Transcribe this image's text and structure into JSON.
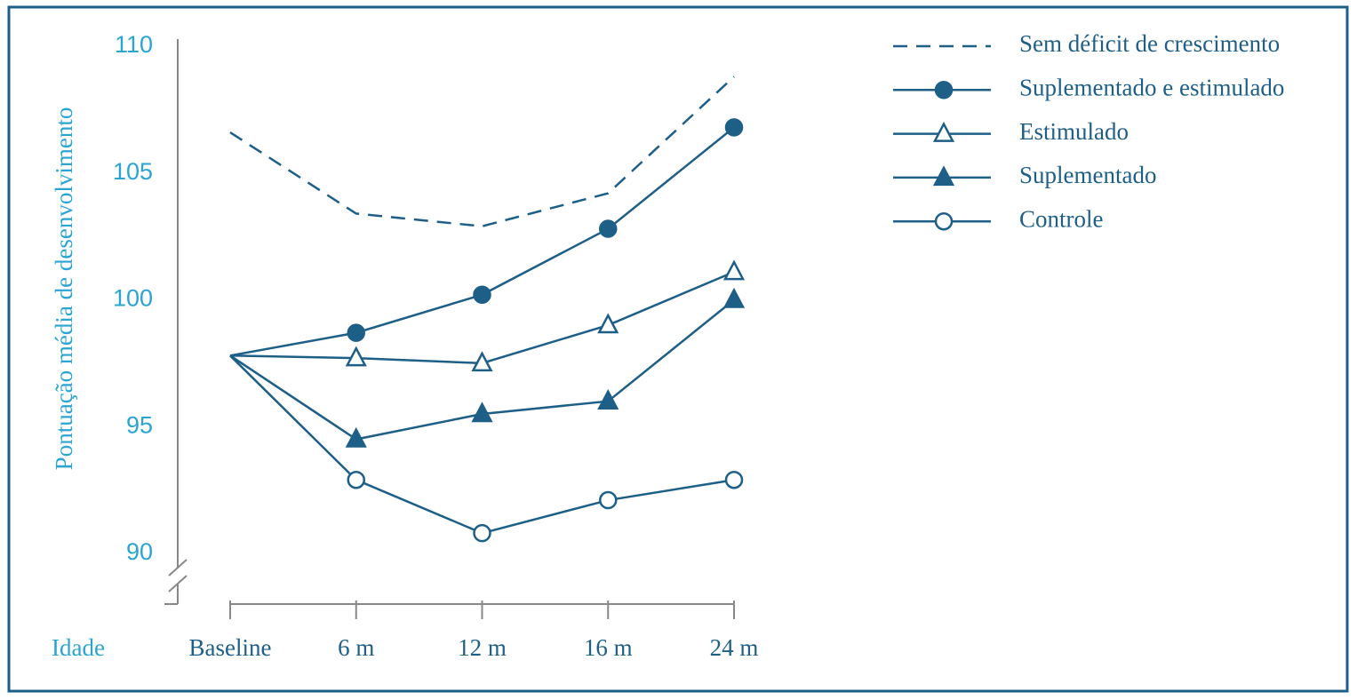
{
  "chart_data": {
    "type": "line",
    "y_label": "Pontuação média de desenvolvimento",
    "x_label": "Idade",
    "categories": [
      "Baseline",
      "6 m",
      "12 m",
      "16 m",
      "24 m"
    ],
    "ylim": [
      90,
      110
    ],
    "yticks": [
      90,
      95,
      100,
      105,
      110
    ],
    "series": [
      {
        "name": "Sem déficit de crescimento",
        "color": "#1e5f88",
        "dashed": true,
        "marker": "none",
        "values": [
          106.6,
          103.4,
          102.9,
          104.2,
          108.8
        ]
      },
      {
        "name": "Suplementado e estimulado",
        "color": "#1e5f88",
        "marker": "circle",
        "filled": true,
        "values": [
          97.8,
          98.7,
          100.2,
          102.8,
          106.8
        ]
      },
      {
        "name": "Estimulado",
        "color": "#1e5f88",
        "marker": "triangle",
        "filled": false,
        "values": [
          97.8,
          97.7,
          97.5,
          99.0,
          101.1
        ]
      },
      {
        "name": "Suplementado",
        "color": "#1e5f88",
        "marker": "triangle",
        "filled": true,
        "values": [
          97.8,
          94.5,
          95.5,
          96.0,
          100.0
        ]
      },
      {
        "name": "Controle",
        "color": "#1e5f88",
        "marker": "circle",
        "filled": false,
        "values": [
          97.8,
          92.9,
          90.8,
          92.1,
          92.9
        ]
      }
    ]
  }
}
